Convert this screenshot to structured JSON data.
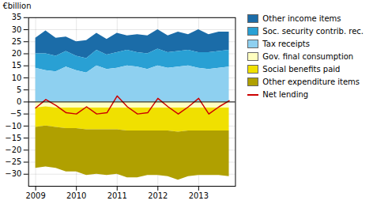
{
  "chart_data": {
    "type": "area",
    "stacked": true,
    "ylabel": "€billion",
    "categories": [
      "2009",
      null,
      null,
      null,
      "2010",
      null,
      null,
      null,
      "2011",
      null,
      null,
      null,
      "2012",
      null,
      null,
      null,
      "2013",
      null,
      null,
      null
    ],
    "ylim": [
      -35,
      35
    ],
    "yticks": [
      -30,
      -25,
      -20,
      -15,
      -10,
      -5,
      0,
      5,
      10,
      15,
      20,
      25,
      30,
      35
    ],
    "grid": true,
    "legend": "right",
    "series": [
      {
        "name": "Other income items",
        "color": "#1b6ca8",
        "values": [
          6.5,
          9.5,
          7.5,
          6.0,
          6.0,
          7.5,
          7.0,
          6.5,
          8.0,
          6.0,
          7.5,
          7.5,
          8.0,
          7.0,
          8.0,
          6.5,
          9.5,
          7.5,
          8.0,
          7.5
        ]
      },
      {
        "name": "Soc. security contrib. rec.",
        "color": "#29a0d4",
        "values": [
          6.0,
          7.0,
          6.5,
          6.5,
          6.0,
          6.0,
          6.5,
          6.0,
          6.5,
          6.5,
          6.0,
          6.5,
          7.0,
          6.5,
          6.5,
          6.5,
          6.5,
          7.0,
          7.0,
          7.0
        ]
      },
      {
        "name": "Tax receipts",
        "color": "#8ed0f0",
        "values": [
          14.0,
          13.0,
          12.5,
          14.5,
          13.0,
          12.0,
          15.0,
          13.5,
          14.0,
          15.0,
          14.5,
          13.5,
          15.0,
          14.0,
          14.5,
          15.0,
          14.0,
          13.5,
          14.0,
          14.5
        ]
      },
      {
        "name": "Gov. final consumption",
        "color": "#ffffc0",
        "values": [
          -2.5,
          -2.0,
          -2.5,
          -2.5,
          -2.5,
          -2.5,
          -2.5,
          -2.5,
          -2.5,
          -2.5,
          -2.5,
          -2.5,
          -2.5,
          -2.5,
          -2.5,
          -2.5,
          -2.5,
          -2.5,
          -2.5,
          -2.5
        ]
      },
      {
        "name": "Social benefits paid",
        "color": "#f0e000",
        "values": [
          -8.0,
          -8.0,
          -8.0,
          -8.5,
          -8.5,
          -9.0,
          -9.0,
          -9.0,
          -9.0,
          -9.5,
          -9.5,
          -9.5,
          -9.5,
          -9.5,
          -10.0,
          -9.5,
          -9.5,
          -9.5,
          -9.5,
          -9.5
        ]
      },
      {
        "name": "Other expenditure items",
        "color": "#b0a000",
        "values": [
          -17.0,
          -17.0,
          -17.0,
          -18.0,
          -18.0,
          -19.0,
          -18.5,
          -19.0,
          -18.5,
          -19.5,
          -19.5,
          -18.5,
          -18.5,
          -19.0,
          -20.0,
          -19.0,
          -18.5,
          -18.5,
          -18.5,
          -19.0
        ]
      },
      {
        "name": "Net lending",
        "type": "line",
        "color": "#cc0000",
        "values": [
          -2.5,
          1.0,
          -1.5,
          -4.5,
          -5.0,
          -2.0,
          -5.0,
          -4.5,
          2.5,
          -2.0,
          -5.0,
          -4.5,
          1.5,
          -2.0,
          -5.0,
          -2.0,
          1.5,
          -5.0,
          -2.0,
          0.5
        ]
      }
    ]
  }
}
